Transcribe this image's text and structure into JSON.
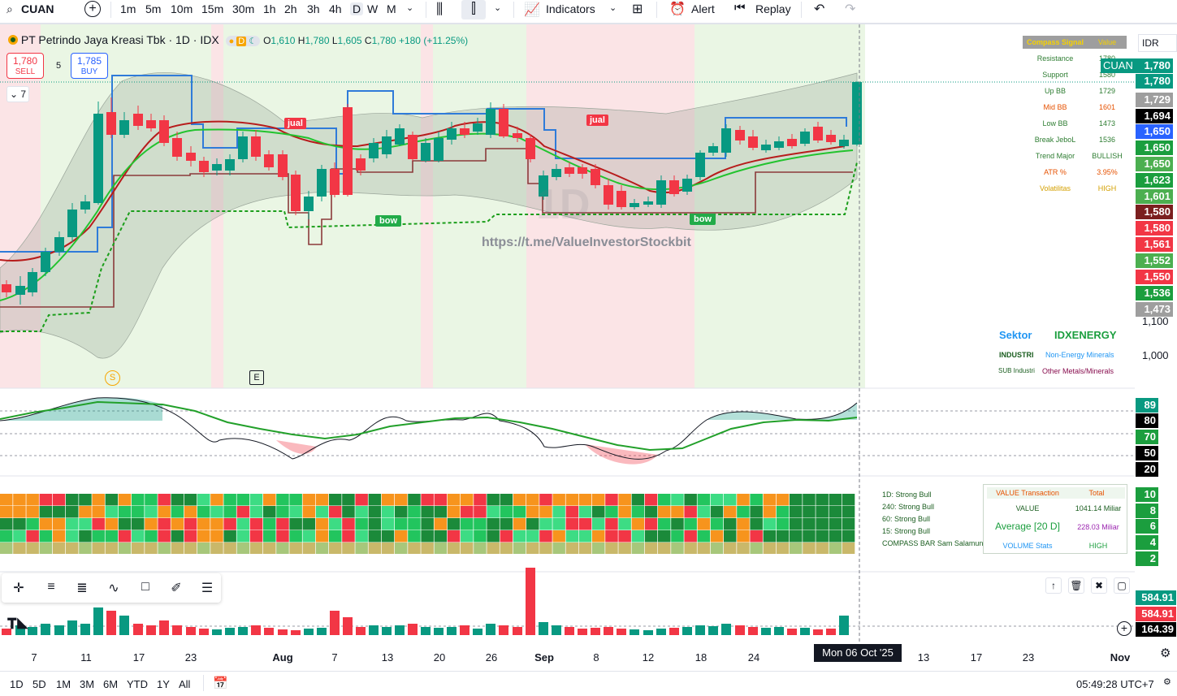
{
  "toolbar": {
    "symbol": "CUAN",
    "intervals": [
      "1m",
      "5m",
      "10m",
      "15m",
      "30m",
      "1h",
      "2h",
      "3h",
      "4h",
      "D",
      "W",
      "M"
    ],
    "selected_interval": "D",
    "indicators_label": "Indicators",
    "alert_label": "Alert",
    "replay_label": "Replay"
  },
  "legend": {
    "title": "PT Petrindo Jaya Kreasi Tbk · 1D · IDX",
    "o_label": "O",
    "o": "1,610",
    "h_label": "H",
    "h": "1,780",
    "l_label": "L",
    "l": "1,605",
    "c_label": "C",
    "c": "1,780",
    "change": "+180 (+11.25%)",
    "sell_price": "1,780",
    "sell_label": "SELL",
    "spread": "5",
    "buy_price": "1,785",
    "buy_label": "BUY",
    "collapse_count": "7"
  },
  "watermark": "1D",
  "watermark_link": "https://t.me/ValueInvestorStockbit",
  "currency": "IDR",
  "markers": {
    "jual_label": "jual",
    "bow_label": "bow",
    "s_label": "S",
    "e_label": "E"
  },
  "compass": {
    "header_key": "Compass Signal",
    "header_val": "Value",
    "rows": [
      {
        "k": "Resistance",
        "v": "1780",
        "color": "#2e7d32"
      },
      {
        "k": "Support",
        "v": "1580",
        "color": "#2e7d32"
      },
      {
        "k": "Up BB",
        "v": "1729",
        "color": "#2e7d32"
      },
      {
        "k": "Mid BB",
        "v": "1601",
        "color": "#e65100"
      },
      {
        "k": "Low BB",
        "v": "1473",
        "color": "#2e7d32"
      },
      {
        "k": "Break JeboL",
        "v": "1536",
        "color": "#2e7d32"
      },
      {
        "k": "Trend Major",
        "v": "BULLISH",
        "color": "#2e7d32"
      },
      {
        "k": "ATR %",
        "v": "3.95%",
        "color": "#e65100"
      },
      {
        "k": "Volatilitas",
        "v": "HIGH",
        "color": "#d4a000"
      }
    ]
  },
  "price_tags": [
    {
      "label": "CUAN",
      "value": "1,780",
      "bg": "#089981"
    },
    {
      "value": "1,780",
      "bg": "#089981"
    },
    {
      "value": "1,729",
      "bg": "#9e9e9e"
    },
    {
      "value": "1,694",
      "bg": "#000000"
    },
    {
      "value": "1,650",
      "bg": "#2962ff"
    },
    {
      "value": "1,650",
      "bg": "#1b9e3e"
    },
    {
      "value": "1,650",
      "bg": "#4caf50"
    },
    {
      "value": "1,623",
      "bg": "#1b9e3e"
    },
    {
      "value": "1,601",
      "bg": "#4caf50"
    },
    {
      "value": "1,580",
      "bg": "#7b1f1f"
    },
    {
      "value": "1,580",
      "bg": "#f23645"
    },
    {
      "value": "1,561",
      "bg": "#f23645"
    },
    {
      "value": "1,552",
      "bg": "#4caf50"
    },
    {
      "value": "1,550",
      "bg": "#f23645"
    },
    {
      "value": "1,536",
      "bg": "#1b9e3e"
    },
    {
      "value": "1,473",
      "bg": "#9e9e9e"
    }
  ],
  "price_labels": [
    "1,100",
    "1,000"
  ],
  "sektor": {
    "label": "Sektor",
    "value": "IDXENERGY",
    "industri_key": "INDUSTRI",
    "industri_val": "Non-Energy Minerals",
    "sub_key": "SUB Industri",
    "sub_val": "Other Metals/Minerals"
  },
  "rsi_scale": [
    {
      "v": "89",
      "bg": "#089981"
    },
    {
      "v": "80",
      "bg": "#000000"
    },
    {
      "v": "70",
      "bg": "#1b9e3e"
    },
    {
      "v": "50",
      "bg": "#000000"
    },
    {
      "v": "20",
      "bg": "#000000"
    }
  ],
  "compass_bar": {
    "labels": [
      "1D: Strong Bull",
      "240: Strong Bull",
      "60: Strong Bull",
      "15: Strong Bull",
      "COMPASS BAR Sam Salamun"
    ],
    "scale": [
      "10",
      "8",
      "6",
      "4",
      "2"
    ]
  },
  "value_table": {
    "h1": "VALUE Transaction",
    "h2": "Total",
    "r1k": "VALUE",
    "r1v": "1041.14 Miliar",
    "r2k": "Average [20 D]",
    "r2v": "228.03 Miliar",
    "r3k": "VOLUME Stats",
    "r3v": "HIGH"
  },
  "volume_scale": [
    {
      "v": "584.91",
      "bg": "#089981"
    },
    {
      "v": "584.91",
      "bg": "#f23645"
    },
    {
      "v": "164.39",
      "bg": "#000000"
    }
  ],
  "time_axis": {
    "labels": [
      {
        "t": "7"
      },
      {
        "t": "11"
      },
      {
        "t": "17"
      },
      {
        "t": "23"
      },
      {
        "t": "Aug"
      },
      {
        "t": "7"
      },
      {
        "t": "13"
      },
      {
        "t": "20"
      },
      {
        "t": "26"
      },
      {
        "t": "Sep"
      },
      {
        "t": "8"
      },
      {
        "t": "12"
      },
      {
        "t": "18"
      },
      {
        "t": "24"
      },
      {
        "t": "13"
      },
      {
        "t": "17"
      },
      {
        "t": "23"
      },
      {
        "t": "Nov"
      }
    ],
    "crosshair_date": "Mon 06 Oct '25"
  },
  "bottombar": {
    "ranges": [
      "1D",
      "5D",
      "1M",
      "3M",
      "6M",
      "YTD",
      "1Y",
      "All"
    ],
    "time": "05:49:28 UTC+7"
  }
}
